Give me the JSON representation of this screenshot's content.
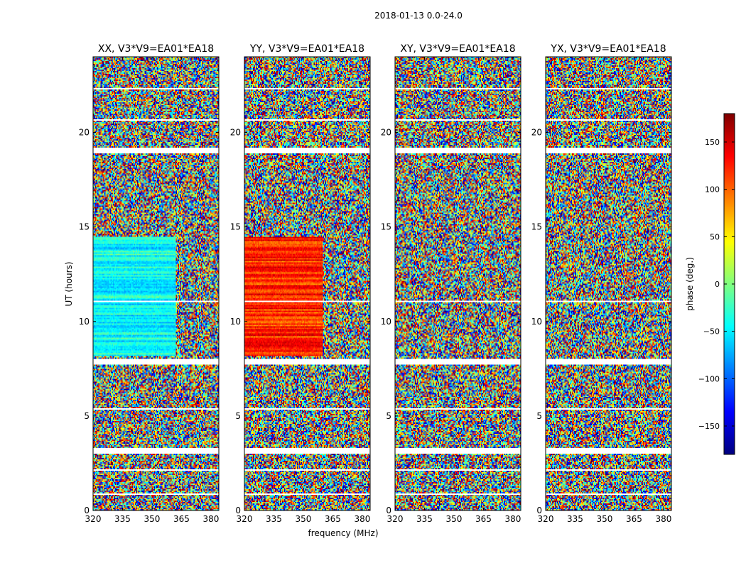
{
  "chart_data": {
    "type": "heatmap",
    "suptitle": "2018-01-13 0.0-24.0",
    "xlabel": "frequency (MHz)",
    "ylabel": "UT (hours)",
    "xlim": [
      320,
      384
    ],
    "ylim": [
      0,
      24
    ],
    "xticks": [
      320,
      335,
      350,
      365,
      380
    ],
    "yticks": [
      0,
      5,
      10,
      15,
      20
    ],
    "panels": [
      {
        "title": "XX, V3*V9=EA01*EA18",
        "show_yticks": true
      },
      {
        "title": "YY, V3*V9=EA01*EA18",
        "show_yticks": true
      },
      {
        "title": "XY, V3*V9=EA01*EA18",
        "show_yticks": true
      },
      {
        "title": "YX, V3*V9=EA01*EA18",
        "show_yticks": true
      }
    ],
    "colorbar": {
      "label": "phase (deg.)",
      "range": [
        -180,
        180
      ],
      "ticks": [
        150,
        100,
        50,
        0,
        -50,
        -100,
        -150
      ],
      "tick_labels": [
        "150",
        "100",
        "50",
        "0",
        "−50",
        "−100",
        "−150"
      ],
      "colormap": "jet"
    },
    "blank_bands_hours": [
      [
        3.0,
        3.3
      ],
      [
        7.7,
        8.0
      ],
      [
        18.9,
        19.2
      ],
      [
        0.8,
        0.9
      ],
      [
        2.1,
        2.2
      ],
      [
        5.3,
        5.4
      ],
      [
        11.0,
        11.08
      ],
      [
        20.6,
        20.7
      ],
      [
        22.3,
        22.38
      ]
    ],
    "coherent_regions": [
      {
        "panel": "XX",
        "hours": [
          8.2,
          14.5
        ],
        "freq_mhz": [
          320,
          362
        ],
        "phase_deg": -40
      },
      {
        "panel": "YY",
        "hours": [
          8.2,
          14.5
        ],
        "freq_mhz": [
          320,
          360
        ],
        "phase_deg": 120
      }
    ]
  },
  "colors": {
    "axis": "#000000",
    "background": "#ffffff"
  }
}
